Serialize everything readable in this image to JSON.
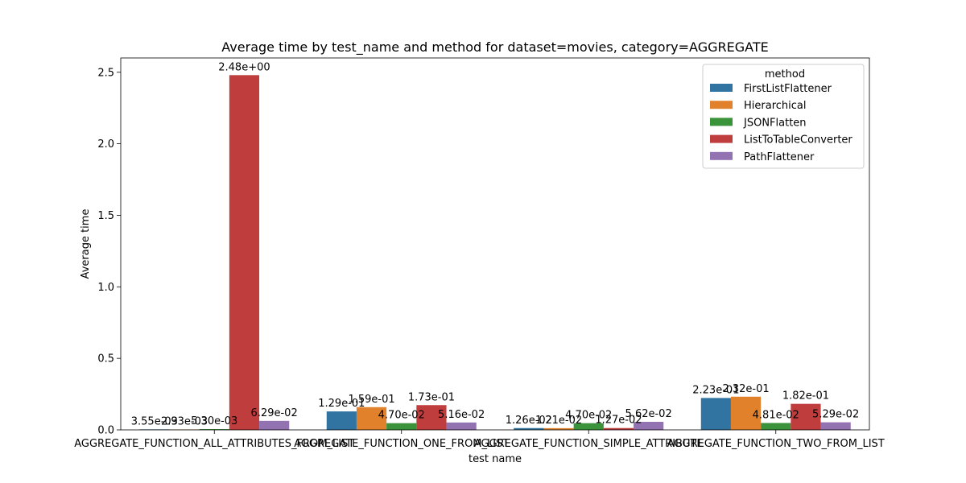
{
  "chart_data": {
    "type": "bar",
    "title": "Average time by test_name and method for dataset=movies, category=AGGREGATE",
    "xlabel": "test name",
    "ylabel": "Average time",
    "ylim": [
      0,
      2.6
    ],
    "yticks": [
      0.0,
      0.5,
      1.0,
      1.5,
      2.0,
      2.5
    ],
    "ytick_labels": [
      "0.0",
      "0.5",
      "1.0",
      "1.5",
      "2.0",
      "2.5"
    ],
    "categories": [
      "AGGREGATE_FUNCTION_ALL_ATTRIBUTES_FROM_LIST",
      "AGGREGATE_FUNCTION_ONE_FROM_LIST",
      "AGGREGATE_FUNCTION_SIMPLE_ATTRIBUTE",
      "AGGREGATE_FUNCTION_TWO_FROM_LIST"
    ],
    "legend_title": "method",
    "legend_position": "top-right",
    "series": [
      {
        "name": "FirstListFlattener",
        "color": "#3274a1",
        "values": [
          0.00355,
          0.129,
          0.0126,
          0.223
        ],
        "labels": [
          "3.55e-03",
          "1.29e-01",
          "1.26e-02",
          "2.23e-01"
        ]
      },
      {
        "name": "Hierarchical",
        "color": "#e1812c",
        "values": [
          0.00293,
          0.159,
          0.0121,
          0.232
        ],
        "labels": [
          "2.93e-03",
          "1.59e-01",
          "1.21e-02",
          "2.32e-01"
        ]
      },
      {
        "name": "JSONFlatten",
        "color": "#3a923a",
        "values": [
          0.0053,
          0.047,
          0.047,
          0.0481
        ],
        "labels": [
          "5.30e-03",
          "4.70e-02",
          "4.70e-02",
          "4.81e-02"
        ]
      },
      {
        "name": "ListToTableConverter",
        "color": "#c03d3e",
        "values": [
          2.48,
          0.173,
          0.0127,
          0.182
        ],
        "labels": [
          "2.48e+00",
          "1.73e-01",
          "1.27e-02",
          "1.82e-01"
        ]
      },
      {
        "name": "PathFlattener",
        "color": "#9372b2",
        "values": [
          0.0629,
          0.0516,
          0.0562,
          0.0529
        ],
        "labels": [
          "6.29e-02",
          "5.16e-02",
          "5.62e-02",
          "5.29e-02"
        ]
      }
    ],
    "grid": false
  }
}
